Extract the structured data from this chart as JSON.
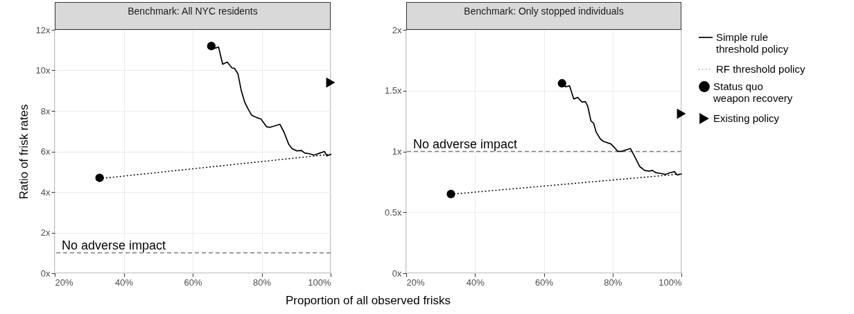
{
  "chart_data": [
    {
      "type": "line",
      "title": "Benchmark: All NYC residents",
      "xlabel": "Proportion of all observed frisks",
      "ylabel": "Ratio of frisk rates",
      "xlim": [
        20,
        100
      ],
      "xticks": [
        {
          "value": 20,
          "label": "20%"
        },
        {
          "value": 40,
          "label": "40%"
        },
        {
          "value": 60,
          "label": "60%"
        },
        {
          "value": 80,
          "label": "80%"
        },
        {
          "value": 100,
          "label": "100%"
        }
      ],
      "ylim": [
        0,
        12
      ],
      "yticks": [
        {
          "value": 0,
          "label": "0x"
        },
        {
          "value": 2,
          "label": "2x"
        },
        {
          "value": 4,
          "label": "4x"
        },
        {
          "value": 6,
          "label": "6x"
        },
        {
          "value": 8,
          "label": "8x"
        },
        {
          "value": 10,
          "label": "10x"
        },
        {
          "value": 12,
          "label": "12x"
        }
      ],
      "grid": true,
      "ref_lines": [
        {
          "axis": "y",
          "value": 1,
          "label": "No adverse impact",
          "color": "#7f7f7f",
          "line_style": "dashed"
        }
      ],
      "series": [
        {
          "type": "line",
          "line_style": "solid",
          "color": "#000000",
          "x": [
            65.4,
            66.4,
            67.5,
            68.7,
            70.0,
            71.4,
            72.1,
            73.1,
            74.1,
            75.1,
            76.1,
            77.1,
            78.4,
            79.8,
            81.4,
            82.4,
            85.3,
            86.5,
            87.8,
            88.8,
            90.2,
            91.5,
            92.5,
            93.8,
            95.2,
            96.9,
            98.2,
            98.9,
            100
          ],
          "values": [
            11.19,
            11.09,
            11.15,
            10.3,
            10.41,
            10.12,
            10.1,
            9.84,
            8.99,
            8.42,
            8.08,
            7.79,
            7.68,
            7.6,
            7.22,
            7.19,
            7.34,
            6.94,
            6.37,
            6.14,
            6.03,
            6.05,
            5.92,
            5.89,
            5.82,
            5.92,
            6.0,
            5.78,
            5.86
          ]
        },
        {
          "type": "line",
          "line_style": "dotted",
          "color": "#000000",
          "x": [
            33,
            100
          ],
          "values": [
            4.66,
            5.86
          ]
        },
        {
          "type": "scatter",
          "marker": "circle",
          "color": "#000000",
          "x": [
            33,
            65.4
          ],
          "values": [
            4.7,
            11.2
          ]
        },
        {
          "type": "scatter",
          "marker": "triangle",
          "color": "#000000",
          "x": [
            100
          ],
          "values": [
            9.4
          ]
        }
      ]
    },
    {
      "type": "line",
      "title": "Benchmark: Only stopped individuals",
      "xlim": [
        20,
        100
      ],
      "xticks": [
        {
          "value": 20,
          "label": "20%"
        },
        {
          "value": 40,
          "label": "40%"
        },
        {
          "value": 60,
          "label": "60%"
        },
        {
          "value": 80,
          "label": "80%"
        },
        {
          "value": 100,
          "label": "100%"
        }
      ],
      "ylim": [
        0,
        2
      ],
      "yticks": [
        {
          "value": 0,
          "label": "0x"
        },
        {
          "value": 0.5,
          "label": "0.5x"
        },
        {
          "value": 1,
          "label": "1x"
        },
        {
          "value": 1.5,
          "label": "1.5x"
        },
        {
          "value": 2,
          "label": "2x"
        }
      ],
      "grid": true,
      "legend": "right",
      "ref_lines": [
        {
          "axis": "y",
          "value": 1,
          "label": "No adverse impact",
          "color": "#7f7f7f",
          "line_style": "dashed"
        }
      ],
      "series": [
        {
          "name": "Simple rule threshold policy",
          "type": "line",
          "line_style": "solid",
          "color": "#000000",
          "x": [
            65.3,
            66.3,
            67.5,
            68.7,
            69.8,
            71.1,
            72.1,
            72.8,
            73.7,
            74.5,
            75.2,
            76.5,
            77.5,
            79.5,
            80.5,
            81.5,
            82.6,
            85.2,
            86.6,
            87.9,
            89.3,
            90.6,
            91.6,
            92.6,
            94.0,
            95.3,
            96.6,
            98.0,
            98.8,
            100
          ],
          "values": [
            1.558,
            1.532,
            1.539,
            1.431,
            1.445,
            1.407,
            1.41,
            1.369,
            1.251,
            1.232,
            1.16,
            1.1,
            1.081,
            1.062,
            1.033,
            1.001,
            1.001,
            1.024,
            0.948,
            0.876,
            0.844,
            0.838,
            0.844,
            0.825,
            0.819,
            0.811,
            0.825,
            0.834,
            0.806,
            0.815
          ]
        },
        {
          "name": "RF threshold policy",
          "type": "line",
          "line_style": "dotted",
          "color": "#000000",
          "x": [
            33,
            100
          ],
          "values": [
            0.648,
            0.815
          ]
        },
        {
          "name": "Status quo weapon recovery",
          "type": "scatter",
          "marker": "circle",
          "color": "#000000",
          "x": [
            33,
            65.3
          ],
          "values": [
            0.65,
            1.56
          ]
        },
        {
          "name": "Existing policy",
          "type": "scatter",
          "marker": "triangle",
          "color": "#000000",
          "x": [
            100
          ],
          "values": [
            1.31
          ]
        }
      ]
    }
  ]
}
